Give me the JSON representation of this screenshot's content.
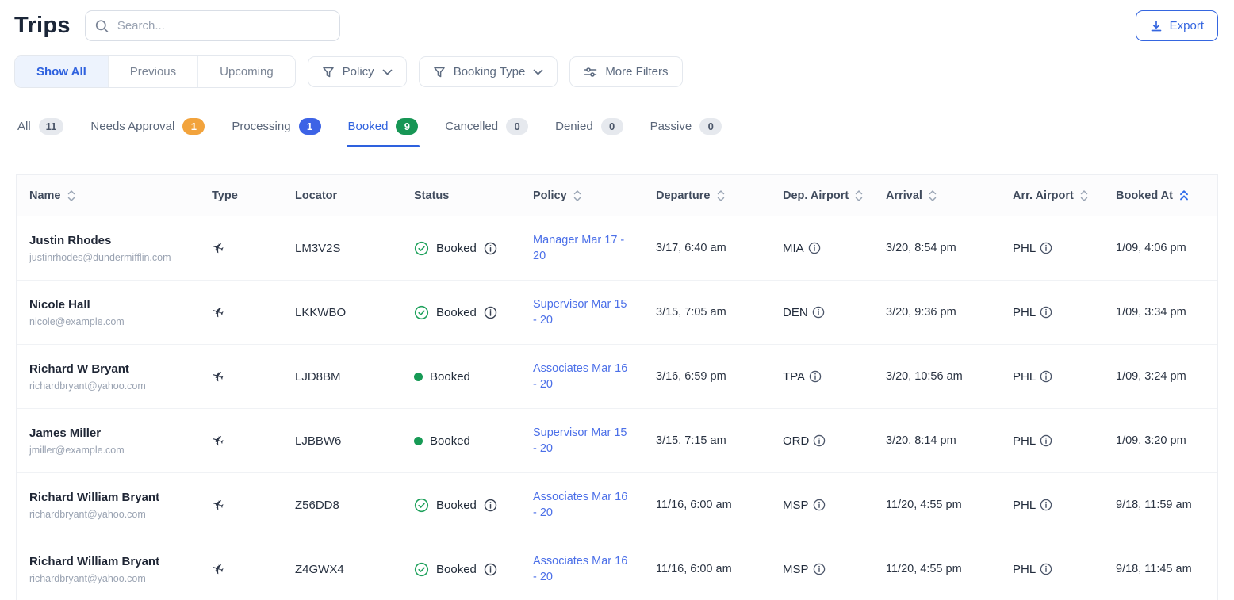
{
  "page": {
    "title": "Trips"
  },
  "search": {
    "placeholder": "Search..."
  },
  "export": {
    "label": "Export"
  },
  "view_filters": [
    {
      "label": "Show All",
      "active": true
    },
    {
      "label": "Previous",
      "active": false
    },
    {
      "label": "Upcoming",
      "active": false
    }
  ],
  "filter_buttons": [
    {
      "label": "Policy",
      "icon": "funnel",
      "chevron": true
    },
    {
      "label": "Booking Type",
      "icon": "funnel",
      "chevron": true
    },
    {
      "label": "More Filters",
      "icon": "sliders",
      "chevron": false
    }
  ],
  "tabs": [
    {
      "label": "All",
      "count": "11",
      "badge": "gray",
      "active": false
    },
    {
      "label": "Needs Approval",
      "count": "1",
      "badge": "orange",
      "active": false
    },
    {
      "label": "Processing",
      "count": "1",
      "badge": "blue",
      "active": false
    },
    {
      "label": "Booked",
      "count": "9",
      "badge": "green",
      "active": true
    },
    {
      "label": "Cancelled",
      "count": "0",
      "badge": "gray",
      "active": false
    },
    {
      "label": "Denied",
      "count": "0",
      "badge": "gray",
      "active": false
    },
    {
      "label": "Passive",
      "count": "0",
      "badge": "gray",
      "active": false
    }
  ],
  "table": {
    "columns": [
      {
        "label": "Name",
        "sort": "both"
      },
      {
        "label": "Type",
        "sort": "none"
      },
      {
        "label": "Locator",
        "sort": "none"
      },
      {
        "label": "Status",
        "sort": "none"
      },
      {
        "label": "Policy",
        "sort": "both"
      },
      {
        "label": "Departure",
        "sort": "both"
      },
      {
        "label": "Dep. Airport",
        "sort": "both"
      },
      {
        "label": "Arrival",
        "sort": "both"
      },
      {
        "label": "Arr. Airport",
        "sort": "both"
      },
      {
        "label": "Booked At",
        "sort": "asc"
      }
    ],
    "rows": [
      {
        "name": "Justin Rhodes",
        "email": "justinrhodes@dundermifflin.com",
        "type": "flight",
        "locator": "LM3V2S",
        "status": "Booked",
        "status_style": "check",
        "policy": "Manager Mar 17 - 20",
        "departure": "3/17, 6:40 am",
        "dep_airport": "MIA",
        "arrival": "3/20, 8:54 pm",
        "arr_airport": "PHL",
        "booked_at": "1/09, 4:06 pm"
      },
      {
        "name": "Nicole Hall",
        "email": "nicole@example.com",
        "type": "flight",
        "locator": "LKKWBO",
        "status": "Booked",
        "status_style": "check",
        "policy": "Supervisor Mar 15 - 20",
        "departure": "3/15, 7:05 am",
        "dep_airport": "DEN",
        "arrival": "3/20, 9:36 pm",
        "arr_airport": "PHL",
        "booked_at": "1/09, 3:34 pm"
      },
      {
        "name": "Richard W Bryant",
        "email": "richardbryant@yahoo.com",
        "type": "flight",
        "locator": "LJD8BM",
        "status": "Booked",
        "status_style": "dot",
        "policy": "Associates Mar 16 - 20",
        "departure": "3/16, 6:59 pm",
        "dep_airport": "TPA",
        "arrival": "3/20, 10:56 am",
        "arr_airport": "PHL",
        "booked_at": "1/09, 3:24 pm"
      },
      {
        "name": "James Miller",
        "email": "jmiller@example.com",
        "type": "flight",
        "locator": "LJBBW6",
        "status": "Booked",
        "status_style": "dot",
        "policy": "Supervisor Mar 15 - 20",
        "departure": "3/15, 7:15 am",
        "dep_airport": "ORD",
        "arrival": "3/20, 8:14 pm",
        "arr_airport": "PHL",
        "booked_at": "1/09, 3:20 pm"
      },
      {
        "name": "Richard William Bryant",
        "email": "richardbryant@yahoo.com",
        "type": "flight",
        "locator": "Z56DD8",
        "status": "Booked",
        "status_style": "check",
        "policy": "Associates Mar 16 - 20",
        "departure": "11/16, 6:00 am",
        "dep_airport": "MSP",
        "arrival": "11/20, 4:55 pm",
        "arr_airport": "PHL",
        "booked_at": "9/18, 11:59 am"
      },
      {
        "name": "Richard William Bryant",
        "email": "richardbryant@yahoo.com",
        "type": "flight",
        "locator": "Z4GWX4",
        "status": "Booked",
        "status_style": "check",
        "policy": "Associates Mar 16 - 20",
        "departure": "11/16, 6:00 am",
        "dep_airport": "MSP",
        "arrival": "11/20, 4:55 pm",
        "arr_airport": "PHL",
        "booked_at": "9/18, 11:45 am"
      }
    ]
  },
  "colors": {
    "accent_blue": "#2e61de",
    "link_blue": "#4b6fe8",
    "status_green": "#179a55",
    "badge_orange": "#f2a33c",
    "badge_blue": "#3d63e6",
    "badge_green": "#179655",
    "text_dark": "#1f2635",
    "text_muted": "#9aa3b2"
  }
}
